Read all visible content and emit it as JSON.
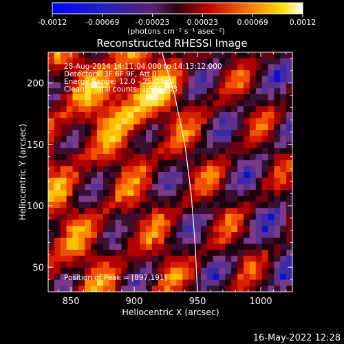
{
  "chart_data": {
    "type": "heatmap",
    "title": "Reconstructed RHESSI Image",
    "xlabel": "Heliocentric X (arcsec)",
    "ylabel": "Heliocentric Y (arcsec)",
    "xlim": [
      832,
      1025
    ],
    "ylim": [
      30,
      225
    ],
    "xticks": [
      850,
      900,
      950,
      1000
    ],
    "yticks": [
      50,
      100,
      150,
      200
    ],
    "colorbar": {
      "ticks": [
        "-0.0012",
        "-0.00069",
        "-0.00023",
        "0.00023",
        "0.00069",
        "0.0012"
      ],
      "range": [
        -0.0012,
        0.0012
      ],
      "unit_label": "(photons cm⁻² s⁻¹ asec⁻²)"
    },
    "info_lines": [
      "28-Aug-2014 14:11:04.000 to 14:13:12.000",
      "Detectors: 3F 6F 9F, Att 0",
      "Energy Range: 12.0 - 25.0 keV",
      "Clean    Total counts: 1.53E+03"
    ],
    "peak_label": "Position of Peak = [897,191]",
    "peak_position": [
      897,
      191
    ],
    "limb_curve": [
      [
        922,
        225
      ],
      [
        932,
        190
      ],
      [
        940,
        150
      ],
      [
        945,
        110
      ],
      [
        948,
        70
      ],
      [
        950,
        30
      ]
    ]
  },
  "footer": {
    "timestamp": "16-May-2022 12:28"
  }
}
